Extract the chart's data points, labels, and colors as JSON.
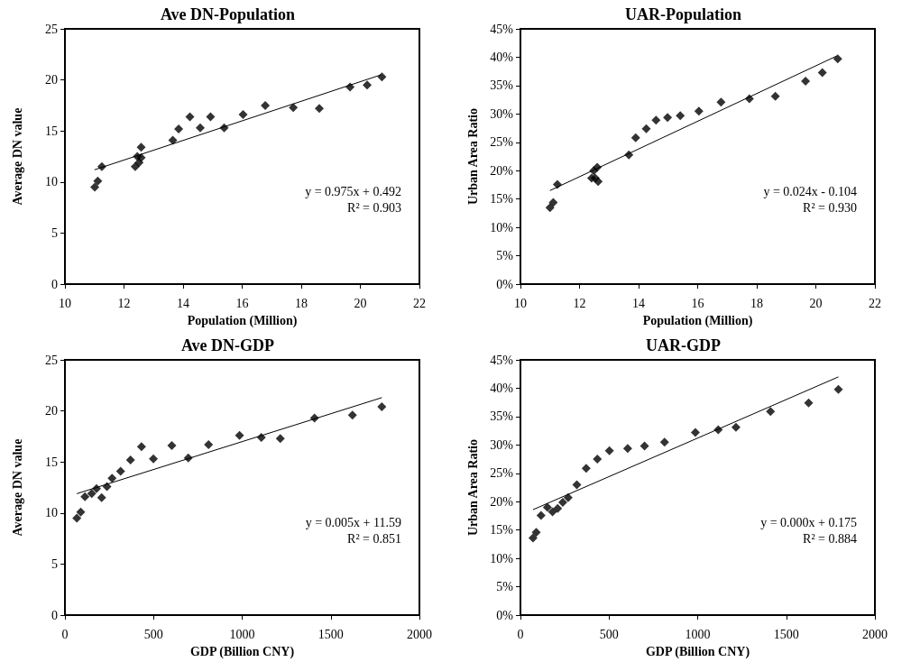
{
  "chart_data": [
    {
      "type": "scatter",
      "title": "Ave DN-Population",
      "xlabel": "Population (Million)",
      "ylabel": "Average DN value",
      "xlim": [
        10,
        22
      ],
      "xticks": [
        10,
        12,
        14,
        16,
        18,
        20,
        22
      ],
      "ylim": [
        0,
        25
      ],
      "yticks": [
        0,
        5,
        10,
        15,
        20,
        25
      ],
      "marker": "diamond",
      "annotations": [
        "y = 0.975x + 0.492",
        "R² = 0.903"
      ],
      "series": [
        {
          "color": "#000000",
          "x": [
            11.01,
            11.11,
            11.25,
            12.38,
            12.45,
            12.51,
            12.58,
            12.58,
            13.65,
            13.85,
            14.23,
            14.58,
            14.93,
            15.39,
            16.03,
            16.78,
            17.73,
            18.61,
            19.65,
            20.23,
            20.73
          ],
          "values": [
            9.5,
            10.1,
            11.5,
            11.5,
            12.5,
            11.9,
            12.4,
            13.4,
            14.1,
            15.2,
            16.4,
            15.3,
            16.4,
            15.3,
            16.6,
            17.5,
            17.3,
            17.2,
            19.3,
            19.5,
            20.3
          ]
        },
        {
          "type": "line",
          "marker": "none",
          "color": "#000000",
          "x": [
            11.0,
            20.7
          ],
          "values": [
            11.2,
            20.5
          ]
        }
      ]
    },
    {
      "type": "scatter",
      "title": "UAR-Population",
      "xlabel": "Population (Million)",
      "ylabel": "Urban Area Ratio",
      "xlim": [
        10,
        22
      ],
      "xticks": [
        10,
        12,
        14,
        16,
        18,
        20,
        22
      ],
      "ylim": [
        0,
        45
      ],
      "yticks": [
        {
          "value": 0,
          "label": "0%"
        },
        {
          "value": 5,
          "label": "5%"
        },
        {
          "value": 10,
          "label": "10%"
        },
        {
          "value": 15,
          "label": "15%"
        },
        {
          "value": 20,
          "label": "20%"
        },
        {
          "value": 25,
          "label": "25%"
        },
        {
          "value": 30,
          "label": "30%"
        },
        {
          "value": 35,
          "label": "35%"
        },
        {
          "value": 40,
          "label": "40%"
        },
        {
          "value": 45,
          "label": "45%"
        }
      ],
      "marker": "diamond",
      "annotations": [
        "y = 0.024x - 0.104",
        "R² = 0.930"
      ],
      "series": [
        {
          "color": "#000000",
          "x": [
            11.0,
            11.11,
            11.25,
            12.41,
            12.48,
            12.53,
            12.6,
            12.63,
            13.67,
            13.9,
            14.26,
            14.59,
            14.98,
            15.41,
            16.04,
            16.79,
            17.75,
            18.63,
            19.65,
            20.22,
            20.74
          ],
          "values": [
            13.5,
            14.4,
            17.6,
            18.7,
            20.0,
            18.7,
            20.6,
            18.1,
            22.8,
            25.8,
            27.4,
            28.9,
            29.4,
            29.7,
            30.5,
            32.1,
            32.7,
            33.1,
            35.8,
            37.3,
            39.7
          ]
        },
        {
          "type": "line",
          "marker": "none",
          "color": "#000000",
          "x": [
            11.0,
            20.7
          ],
          "values": [
            16.5,
            40.2
          ]
        }
      ]
    },
    {
      "type": "scatter",
      "title": "Ave DN-GDP",
      "xlabel": "GDP (Billion CNY)",
      "ylabel": "Average DN value",
      "xlim": [
        0,
        2000
      ],
      "xticks": [
        0,
        500,
        1000,
        1500,
        2000
      ],
      "ylim": [
        0,
        25
      ],
      "yticks": [
        0,
        5,
        10,
        15,
        20,
        25
      ],
      "marker": "diamond",
      "annotations": [
        "y = 0.005x + 11.59",
        "R² = 0.851"
      ],
      "series": [
        {
          "color": "#000000",
          "x": [
            67,
            89,
            113,
            151,
            178,
            207,
            237,
            266,
            314,
            370,
            432,
            499,
            603,
            696,
            810,
            985,
            1108,
            1215,
            1408,
            1622,
            1788
          ],
          "values": [
            9.5,
            10.1,
            11.6,
            11.9,
            12.4,
            11.5,
            12.6,
            13.4,
            14.1,
            15.2,
            16.5,
            15.3,
            16.6,
            15.4,
            16.7,
            17.6,
            17.4,
            17.3,
            19.3,
            19.6,
            20.4
          ]
        },
        {
          "type": "line",
          "marker": "none",
          "color": "#000000",
          "x": [
            67,
            1788
          ],
          "values": [
            11.9,
            21.3
          ]
        }
      ]
    },
    {
      "type": "scatter",
      "title": "UAR-GDP",
      "xlabel": "GDP (Billion CNY)",
      "ylabel": "Urban Area Ratio",
      "xlim": [
        0,
        2000
      ],
      "xticks": [
        0,
        500,
        1000,
        1500,
        2000
      ],
      "ylim": [
        0,
        45
      ],
      "yticks": [
        {
          "value": 0,
          "label": "0%"
        },
        {
          "value": 5,
          "label": "5%"
        },
        {
          "value": 10,
          "label": "10%"
        },
        {
          "value": 15,
          "label": "15%"
        },
        {
          "value": 20,
          "label": "20%"
        },
        {
          "value": 25,
          "label": "25%"
        },
        {
          "value": 30,
          "label": "30%"
        },
        {
          "value": 35,
          "label": "35%"
        },
        {
          "value": 40,
          "label": "40%"
        },
        {
          "value": 45,
          "label": "45%"
        }
      ],
      "marker": "diamond",
      "annotations": [
        "y = 0.000x + 0.175",
        "R² = 0.884"
      ],
      "series": [
        {
          "color": "#000000",
          "x": [
            71,
            89,
            116,
            152,
            181,
            210,
            239,
            269,
            318,
            371,
            434,
            502,
            605,
            700,
            813,
            987,
            1116,
            1216,
            1411,
            1626,
            1794
          ],
          "values": [
            13.6,
            14.6,
            17.6,
            19.0,
            18.2,
            18.8,
            19.9,
            20.7,
            23.0,
            25.9,
            27.5,
            29.0,
            29.4,
            29.8,
            30.5,
            32.2,
            32.7,
            33.1,
            35.9,
            37.4,
            39.8
          ]
        },
        {
          "type": "line",
          "marker": "none",
          "color": "#000000",
          "x": [
            71,
            1794
          ],
          "values": [
            18.6,
            42.0
          ]
        }
      ]
    }
  ]
}
